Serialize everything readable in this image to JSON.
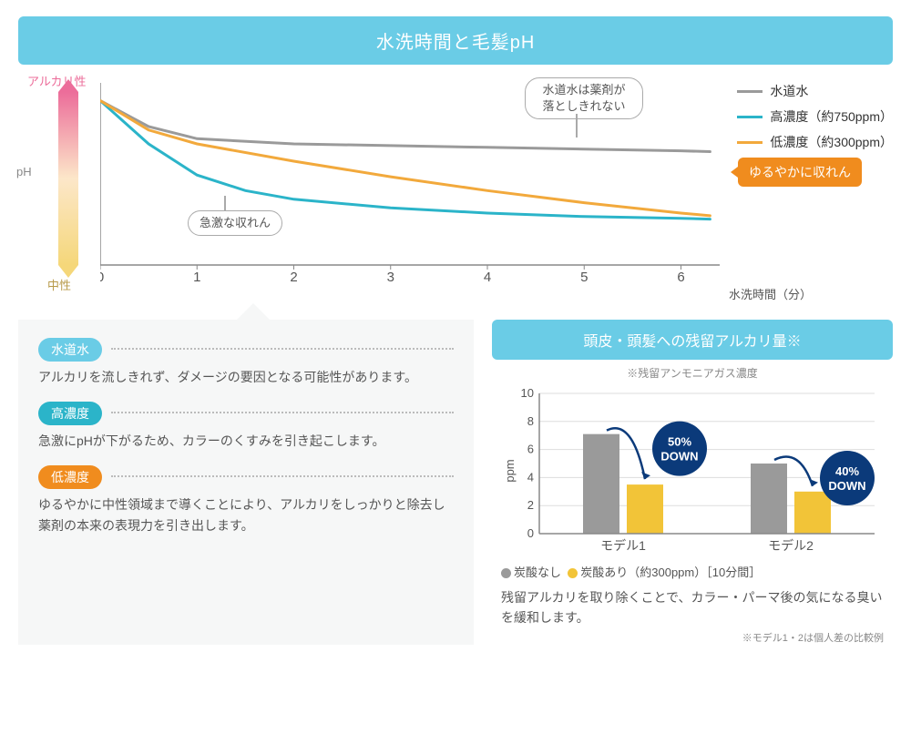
{
  "header_title": "水洗時間と毛髪pH",
  "line_chart": {
    "type": "line",
    "y_label_top": "アルカリ性",
    "y_label_bot": "中性",
    "ph_label": "pH",
    "x_label": "水洗時間（分）",
    "x_ticks": [
      "0",
      "1",
      "2",
      "3",
      "4",
      "5",
      "6"
    ],
    "xlim": [
      0,
      6.4
    ],
    "ylim": [
      0,
      10
    ],
    "series": [
      {
        "name": "水道水",
        "color": "#9a9a9a",
        "width": 3,
        "points": [
          [
            0,
            9.5
          ],
          [
            0.5,
            8.0
          ],
          [
            1,
            7.3
          ],
          [
            2,
            7.0
          ],
          [
            3,
            6.9
          ],
          [
            4,
            6.8
          ],
          [
            5,
            6.7
          ],
          [
            6,
            6.6
          ],
          [
            6.3,
            6.55
          ]
        ]
      },
      {
        "name": "高濃度（約750ppm）",
        "color": "#2bb4c9",
        "width": 3,
        "points": [
          [
            0,
            9.5
          ],
          [
            0.5,
            7.0
          ],
          [
            1,
            5.2
          ],
          [
            1.5,
            4.3
          ],
          [
            2,
            3.8
          ],
          [
            3,
            3.3
          ],
          [
            4,
            3.0
          ],
          [
            5,
            2.8
          ],
          [
            6,
            2.7
          ],
          [
            6.3,
            2.65
          ]
        ]
      },
      {
        "name": "低濃度（約300ppm）",
        "color": "#f2a93c",
        "width": 3,
        "points": [
          [
            0,
            9.5
          ],
          [
            0.5,
            7.8
          ],
          [
            1,
            7.0
          ],
          [
            2,
            6.0
          ],
          [
            3,
            5.1
          ],
          [
            4,
            4.3
          ],
          [
            5,
            3.6
          ],
          [
            6,
            3.0
          ],
          [
            6.3,
            2.85
          ]
        ]
      }
    ],
    "axis_color": "#888",
    "legend": [
      {
        "label": "水道水",
        "color": "#9a9a9a"
      },
      {
        "label": "高濃度（約750ppm）",
        "color": "#2bb4c9"
      },
      {
        "label": "低濃度（約300ppm）",
        "color": "#f2a93c"
      }
    ],
    "callout_tap": {
      "line1": "水道水は薬剤が",
      "line2": "落としきれない"
    },
    "callout_rapid": "急激な収れん",
    "callout_gentle": "ゆるやかに収れん"
  },
  "descriptions": [
    {
      "tag": "水道水",
      "tag_color": "#6acce6",
      "text": "アルカリを流しきれず、ダメージの要因となる可能性があります。"
    },
    {
      "tag": "高濃度",
      "tag_color": "#2bb4c9",
      "text": "急激にpHが下がるため、カラーのくすみを引き起こします。"
    },
    {
      "tag": "低濃度",
      "tag_color": "#f08c1e",
      "text": "ゆるやかに中性領域まで導くことにより、アルカリをしっかりと除去し薬剤の本来の表現力を引き出します。"
    }
  ],
  "bar_chart": {
    "type": "bar",
    "title": "頭皮・頭髪への残留アルカリ量※",
    "note": "※残留アンモニアガス濃度",
    "ylabel": "ppm",
    "ylim": [
      0,
      10
    ],
    "ytick_step": 2,
    "axis_color": "#888",
    "grid_color": "#ddd",
    "groups": [
      {
        "label": "モデル1",
        "no_carb": 7.1,
        "carb": 3.5,
        "down": "50%\nDOWN"
      },
      {
        "label": "モデル2",
        "no_carb": 5.0,
        "carb": 3.0,
        "down": "40%\nDOWN"
      }
    ],
    "colors": {
      "no_carb": "#9a9a9a",
      "carb": "#f2c438"
    },
    "legend_no": "炭酸なし",
    "legend_yes": "炭酸あり（約300ppm）［10分間］",
    "desc": "残留アルカリを取り除くことで、カラー・パーマ後の気になる臭いを緩和します。",
    "footnote": "※モデル1・2は個人差の比較例"
  }
}
